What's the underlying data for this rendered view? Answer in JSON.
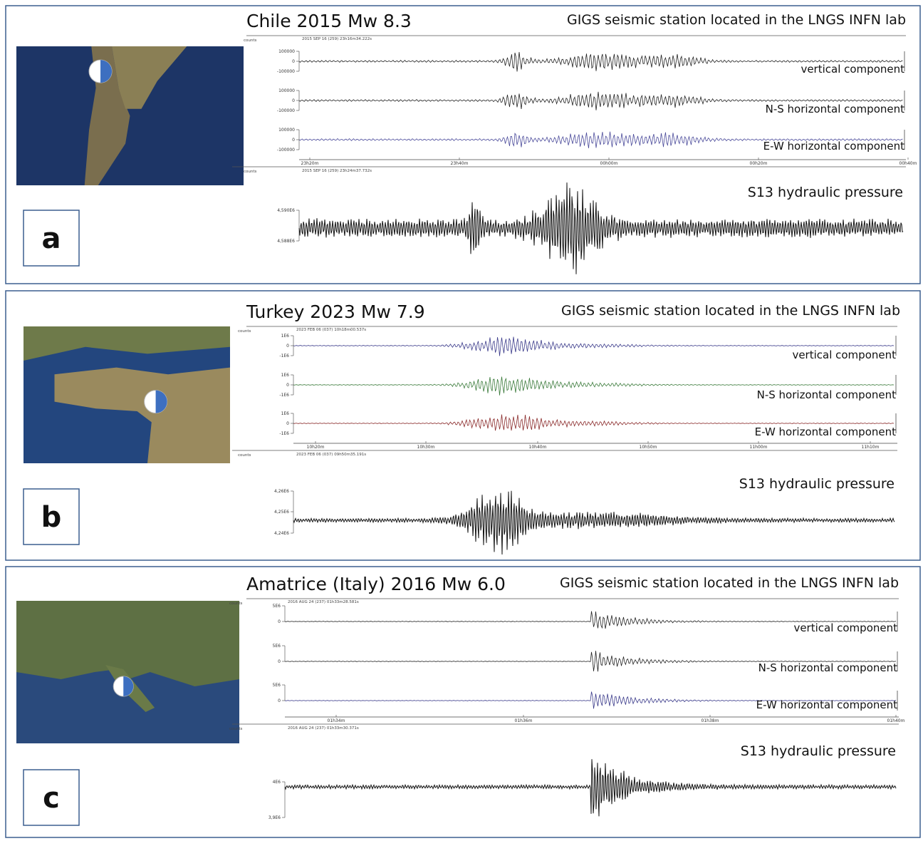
{
  "panels": [
    {
      "label": "a",
      "title": "Chile 2015 Mw 8.3",
      "station": "GIGS seismic station located in the LNGS INFN lab",
      "counts": "counts",
      "header": "2015 SEP 16 (259) 23h16m34.222s",
      "traces": [
        {
          "label": "vertical component",
          "yticks": [
            "100000",
            "0",
            "-100000"
          ]
        },
        {
          "label": "N-S horizontal component",
          "yticks": [
            "100000",
            "0",
            "-100000"
          ]
        },
        {
          "label": "E-W horizontal component",
          "yticks": [
            "100000",
            "0",
            "-100000"
          ]
        }
      ],
      "time_ticks": [
        "23h20m",
        "23h40m",
        "00h00m",
        "00h20m",
        "00h40m"
      ],
      "pressure": {
        "label": "S13 hydraulic pressure",
        "counts": "counts",
        "header": "2015 SEP 16 (259) 23h24m37.732s",
        "yticks": [
          "4,590E6",
          "4,588E6"
        ]
      }
    },
    {
      "label": "b",
      "title": "Turkey 2023 Mw 7.9",
      "station": "GIGS seismic station located in the LNGS INFN lab",
      "counts": "counts",
      "header": "2023 FEB 06 (037) 10h18m00.537s",
      "traces": [
        {
          "label": "vertical component",
          "yticks": [
            "1E6",
            "0",
            "-1E6"
          ]
        },
        {
          "label": "N-S horizontal component",
          "yticks": [
            "1E6",
            "0",
            "-1E6"
          ]
        },
        {
          "label": "E-W horizontal component",
          "yticks": [
            "1E6",
            "0",
            "-1E6"
          ]
        }
      ],
      "time_ticks": [
        "10h20m",
        "10h30m",
        "10h40m",
        "10h50m",
        "11h00m",
        "11h10m"
      ],
      "pressure": {
        "label": "S13 hydraulic pressure",
        "counts": "counts",
        "header": "2023 FEB 06 (037) 09h50m35.191s",
        "yticks": [
          "4,26E6",
          "4,25E6",
          "4,24E6"
        ]
      }
    },
    {
      "label": "c",
      "title": "Amatrice (Italy) 2016 Mw 6.0",
      "station": "GIGS seismic station located in the LNGS INFN lab",
      "counts": "counts",
      "header": "2016 AUG 24 (237) 01h33m28.581s",
      "traces": [
        {
          "label": "vertical component",
          "yticks": [
            "5E6",
            "0"
          ]
        },
        {
          "label": "N-S horizontal component",
          "yticks": [
            "5E6",
            "0"
          ]
        },
        {
          "label": "E-W horizontal component",
          "yticks": [
            "5E6",
            "0"
          ]
        }
      ],
      "time_ticks": [
        "01h34m",
        "01h36m",
        "01h38m",
        "01h40m"
      ],
      "pressure": {
        "label": "S13 hydraulic pressure",
        "counts": "counts",
        "header": "2016 AUG 24 (237) 01h33m30.371s",
        "yticks": [
          "4E6",
          "3,9E6"
        ]
      }
    }
  ]
}
